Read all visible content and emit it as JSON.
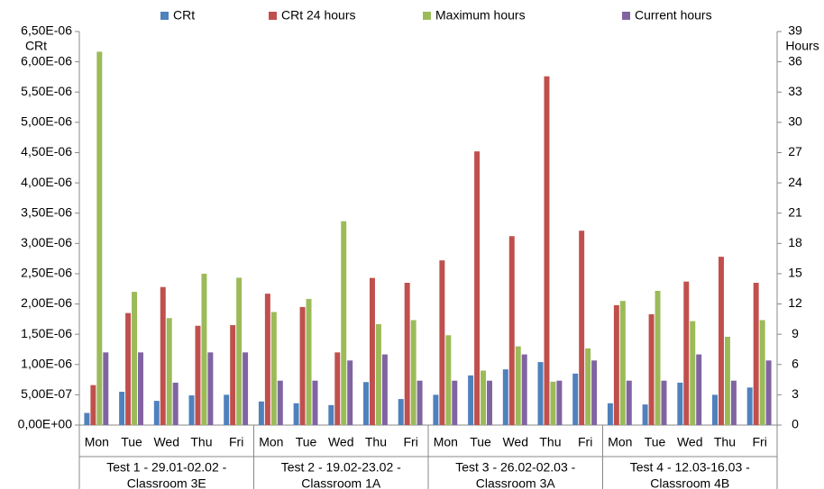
{
  "chart_data": {
    "type": "bar",
    "y_label": "CRt",
    "y2_label": "Hours",
    "categories": [
      "Mon",
      "Tue",
      "Wed",
      "Thu",
      "Fri",
      "Mon",
      "Tue",
      "Wed",
      "Thu",
      "Fri",
      "Mon",
      "Tue",
      "Wed",
      "Thu",
      "Fri",
      "Mon",
      "Tue",
      "Wed",
      "Thu",
      "Fri"
    ],
    "groups": [
      {
        "label": [
          "Test 1 - 29.01-02.02 -",
          "Classroom 3E"
        ]
      },
      {
        "label": [
          "Test 2 - 19.02-23.02 -",
          "Classroom 1A"
        ]
      },
      {
        "label": [
          "Test 3 - 26.02-02.03 -",
          "Classroom 3A"
        ]
      },
      {
        "label": [
          "Test 4 - 12.03-16.03 -",
          "Classroom 4B"
        ]
      }
    ],
    "series": [
      {
        "name": "CRt",
        "color": "#4f81bd",
        "values": [
          2e-07,
          5.5e-07,
          4e-07,
          4.9e-07,
          5e-07,
          3.9e-07,
          3.6e-07,
          3.3e-07,
          7.1e-07,
          4.3e-07,
          5e-07,
          8.2e-07,
          9.2e-07,
          1.04e-06,
          8.5e-07,
          3.6e-07,
          3.4e-07,
          7e-07,
          5e-07,
          6.2e-07
        ]
      },
      {
        "name": "CRt 24 hours",
        "color": "#c0504d",
        "values": [
          6.6e-07,
          1.85e-06,
          2.28e-06,
          1.64e-06,
          1.65e-06,
          2.17e-06,
          1.95e-06,
          1.2e-06,
          2.43e-06,
          2.35e-06,
          2.72e-06,
          4.52e-06,
          3.12e-06,
          5.76e-06,
          3.21e-06,
          1.98e-06,
          1.83e-06,
          2.37e-06,
          2.78e-06,
          2.35e-06
        ]
      },
      {
        "name": "Maximum hours",
        "color": "#9bbb59",
        "axis": "y2",
        "values": [
          37,
          13.2,
          10.6,
          15,
          14.6,
          11.2,
          12.5,
          20.2,
          10,
          10.4,
          8.9,
          5.4,
          7.8,
          4.3,
          7.6,
          12.3,
          13.3,
          10.3,
          8.75,
          10.4
        ]
      },
      {
        "name": "Current hours",
        "color": "#8064a2",
        "axis": "y2",
        "values": [
          7.2,
          7.2,
          4.2,
          7.2,
          7.2,
          4.4,
          4.4,
          6.4,
          7,
          4.4,
          4.4,
          4.4,
          7,
          4.4,
          6.4,
          4.4,
          4.4,
          7,
          4.4,
          6.4
        ]
      }
    ],
    "ylim": [
      0,
      6.5e-06
    ],
    "yticks": [
      {
        "value": 0,
        "label": "0,00E+00"
      },
      {
        "value": 5e-07,
        "label": "5,00E-07"
      },
      {
        "value": 1e-06,
        "label": "1,00E-06"
      },
      {
        "value": 1.5e-06,
        "label": "1,50E-06"
      },
      {
        "value": 2e-06,
        "label": "2,00E-06"
      },
      {
        "value": 2.5e-06,
        "label": "2,50E-06"
      },
      {
        "value": 3e-06,
        "label": "3,00E-06"
      },
      {
        "value": 3.5e-06,
        "label": "3,50E-06"
      },
      {
        "value": 4e-06,
        "label": "4,00E-06"
      },
      {
        "value": 4.5e-06,
        "label": "4,50E-06"
      },
      {
        "value": 5e-06,
        "label": "5,00E-06"
      },
      {
        "value": 5.5e-06,
        "label": "5,50E-06"
      },
      {
        "value": 6e-06,
        "label": "6,00E-06"
      },
      {
        "value": 6.5e-06,
        "label": "6,50E-06"
      }
    ],
    "y2lim": [
      0,
      39
    ],
    "y2ticks": [
      0,
      3,
      6,
      9,
      12,
      15,
      18,
      21,
      24,
      27,
      30,
      33,
      36,
      39
    ],
    "grid": false,
    "legend": "top"
  }
}
